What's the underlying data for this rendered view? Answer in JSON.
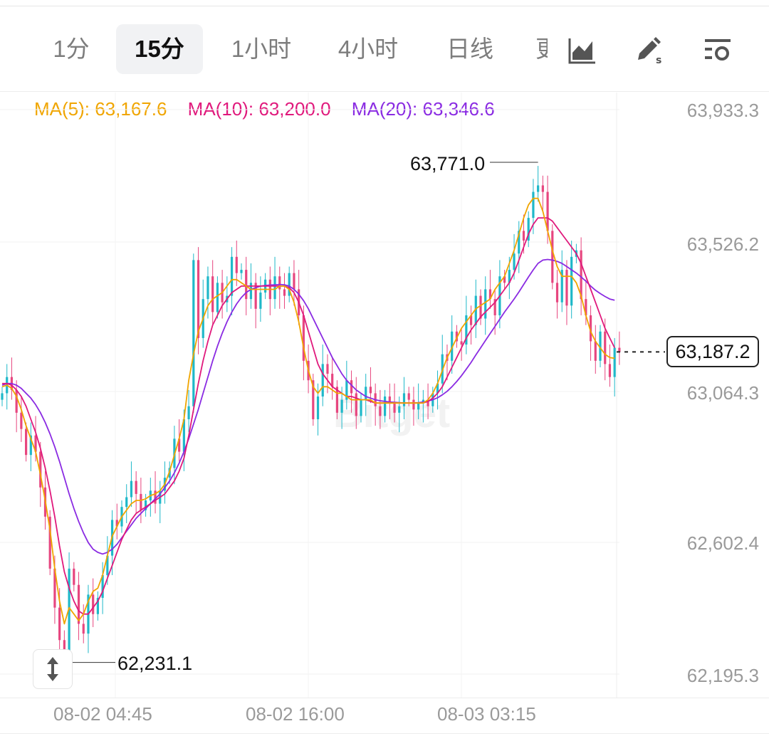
{
  "tabs": [
    {
      "label": "1分",
      "active": false
    },
    {
      "label": "15分",
      "active": true
    },
    {
      "label": "1小时",
      "active": false
    },
    {
      "label": "4小时",
      "active": false
    },
    {
      "label": "日线",
      "active": false
    },
    {
      "label": "更",
      "active": false
    }
  ],
  "toolbar": {
    "icons": [
      "chart-type-icon",
      "draw-pen-icon",
      "settings-icon"
    ]
  },
  "chart_data": {
    "type": "candlestick",
    "watermark": "Bitget",
    "legend": [
      {
        "label": "MA(5): 63,167.6",
        "color": "#f0a500"
      },
      {
        "label": "MA(10): 63,200.0",
        "color": "#e0197c"
      },
      {
        "label": "MA(20): 63,346.6",
        "color": "#8a2be2"
      }
    ],
    "y_axis_labels": [
      "63,933.3",
      "63,526.2",
      "63,064.3",
      "62,602.4",
      "62,195.3"
    ],
    "ylim": [
      62195.3,
      63933.3
    ],
    "x_axis_labels": [
      "08-02 04:45",
      "08-02 16:00",
      "08-03 03:15"
    ],
    "high_marker": "63,771.0",
    "low_marker": "62,231.1",
    "current_price": "63,187.2",
    "colors": {
      "up": "#1fb8c9",
      "down": "#e7467f"
    },
    "series_close": [
      63060,
      63110,
      63070,
      63000,
      62950,
      62870,
      62930,
      62880,
      62770,
      62680,
      62520,
      62400,
      62300,
      62231.1,
      62520,
      62470,
      62350,
      62320,
      62440,
      62380,
      62430,
      62500,
      62560,
      62670,
      62650,
      62710,
      62740,
      62790,
      62750,
      62700,
      62730,
      62760,
      62720,
      62760,
      62800,
      62830,
      62920,
      62880,
      62980,
      63020,
      63470,
      63230,
      63350,
      63420,
      63310,
      63400,
      63340,
      63360,
      63480,
      63430,
      63440,
      63350,
      63400,
      63320,
      63370,
      63410,
      63350,
      63420,
      63380,
      63360,
      63430,
      63380,
      63300,
      63160,
      63100,
      62980,
      63050,
      63150,
      63120,
      63080,
      63000,
      63040,
      63100,
      63060,
      62990,
      63040,
      63080,
      63060,
      63020,
      62990,
      63050,
      63030,
      63000,
      63020,
      63060,
      63040,
      63010,
      63030,
      63040,
      63020,
      63060,
      63090,
      63180,
      63160,
      63250,
      63220,
      63210,
      63300,
      63270,
      63360,
      63290,
      63380,
      63350,
      63300,
      63420,
      63400,
      63440,
      63490,
      63560,
      63530,
      63600,
      63680,
      63700,
      63680,
      63560,
      63400,
      63340,
      63440,
      63330,
      63480,
      63500,
      63350,
      63300,
      63220,
      63160,
      63250,
      63150,
      63110,
      63200,
      63187.2
    ],
    "ma5": [
      63080,
      63085,
      63075,
      63050,
      63010,
      62960,
      62920,
      62880,
      62810,
      62730,
      62640,
      62520,
      62420,
      62350,
      62400,
      62380,
      62360,
      62380,
      62420,
      62450,
      62460,
      62500,
      62560,
      62620,
      62650,
      62680,
      62700,
      62720,
      62730,
      62730,
      62735,
      62745,
      62750,
      62760,
      62780,
      62820,
      62870,
      62920,
      62980,
      63100,
      63180,
      63250,
      63290,
      63330,
      63350,
      63360,
      63370,
      63390,
      63410,
      63410,
      63400,
      63390,
      63380,
      63380,
      63380,
      63380,
      63380,
      63380,
      63390,
      63390,
      63380,
      63340,
      63280,
      63200,
      63130,
      63080,
      63060,
      63080,
      63080,
      63070,
      63060,
      63060,
      63050,
      63040,
      63040,
      63040,
      63040,
      63040,
      63030,
      63030,
      63030,
      63030,
      63030,
      63030,
      63030,
      63030,
      63030,
      63030,
      63030,
      63040,
      63060,
      63090,
      63130,
      63170,
      63200,
      63230,
      63260,
      63280,
      63300,
      63320,
      63330,
      63340,
      63350,
      63380,
      63400,
      63420,
      63460,
      63500,
      63550,
      63600,
      63640,
      63660,
      63660,
      63620,
      63560,
      63500,
      63450,
      63420,
      63420,
      63420,
      63400,
      63360,
      63300,
      63250,
      63220,
      63200,
      63180,
      63170,
      63167.6
    ],
    "ma10": [
      63090,
      63090,
      63085,
      63070,
      63050,
      63020,
      62980,
      62940,
      62890,
      62830,
      62760,
      62680,
      62590,
      62510,
      62460,
      62420,
      62390,
      62380,
      62380,
      62400,
      62420,
      62450,
      62490,
      62530,
      62570,
      62610,
      62640,
      62670,
      62690,
      62700,
      62710,
      62720,
      62730,
      62740,
      62750,
      62770,
      62790,
      62820,
      62860,
      62930,
      63010,
      63090,
      63160,
      63220,
      63270,
      63300,
      63330,
      63350,
      63370,
      63380,
      63390,
      63390,
      63390,
      63390,
      63390,
      63390,
      63390,
      63390,
      63390,
      63390,
      63385,
      63370,
      63340,
      63300,
      63250,
      63200,
      63150,
      63120,
      63100,
      63080,
      63070,
      63060,
      63050,
      63050,
      63045,
      63040,
      63040,
      63035,
      63030,
      63030,
      63030,
      63030,
      63030,
      63030,
      63030,
      63030,
      63030,
      63030,
      63030,
      63035,
      63045,
      63060,
      63080,
      63110,
      63140,
      63170,
      63200,
      63230,
      63255,
      63275,
      63295,
      63310,
      63325,
      63340,
      63360,
      63380,
      63400,
      63430,
      63470,
      63510,
      63550,
      63580,
      63600,
      63600,
      63600,
      63590,
      63570,
      63550,
      63530,
      63510,
      63490,
      63460,
      63420,
      63380,
      63340,
      63300,
      63260,
      63230,
      63200.0
    ],
    "ma20": [
      63085,
      63090,
      63090,
      63085,
      63075,
      63060,
      63045,
      63025,
      63000,
      62970,
      62935,
      62895,
      62850,
      62800,
      62750,
      62705,
      62665,
      62630,
      62600,
      62580,
      62570,
      62565,
      62570,
      62580,
      62595,
      62615,
      62635,
      62655,
      62675,
      62690,
      62705,
      62720,
      62735,
      62750,
      62770,
      62790,
      62815,
      62845,
      62880,
      62920,
      62965,
      63010,
      63060,
      63110,
      63160,
      63205,
      63245,
      63280,
      63310,
      63335,
      63355,
      63370,
      63380,
      63385,
      63390,
      63392,
      63393,
      63394,
      63395,
      63394,
      63390,
      63380,
      63365,
      63345,
      63320,
      63290,
      63260,
      63230,
      63200,
      63170,
      63145,
      63120,
      63100,
      63085,
      63070,
      63060,
      63050,
      63045,
      63040,
      63037,
      63035,
      63033,
      63032,
      63031,
      63030,
      63030,
      63030,
      63031,
      63033,
      63036,
      63040,
      63046,
      63055,
      63066,
      63080,
      63096,
      63114,
      63134,
      63155,
      63178,
      63200,
      63222,
      63244,
      63266,
      63288,
      63310,
      63330,
      63350,
      63372,
      63395,
      63418,
      63440,
      63460,
      63470,
      63472,
      63470,
      63466,
      63460,
      63450,
      63440,
      63430,
      63418,
      63405,
      63390,
      63377,
      63367,
      63358,
      63350,
      63346.6
    ]
  }
}
